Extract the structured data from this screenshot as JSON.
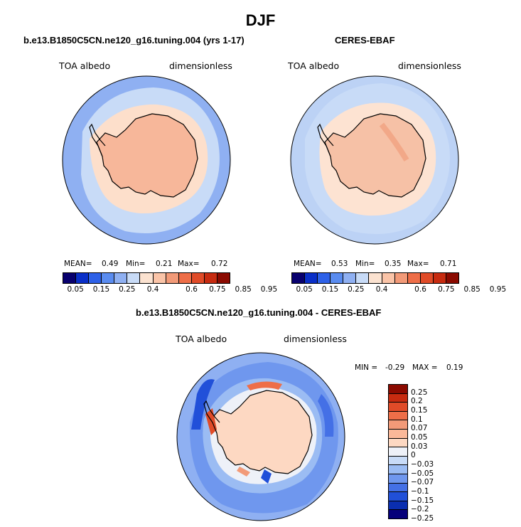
{
  "title": "DJF",
  "chart_data": [
    {
      "type": "heatmap",
      "projection": "south-polar-stereographic",
      "title": "b.e13.B1850C5CN.ne120_g16.tuning.004 (yrs 1-17)",
      "left_label": "TOA albedo",
      "right_label": "dimensionless",
      "stats": {
        "mean_label": "MEAN=",
        "mean": "0.49",
        "min_label": "Min=",
        "min": "0.21",
        "max_label": "Max=",
        "max": "0.72"
      },
      "colorbar_ticks": [
        "0.05",
        "0.15",
        "0.25",
        "0.4",
        "0.6",
        "0.75",
        "0.85",
        "0.95"
      ]
    },
    {
      "type": "heatmap",
      "projection": "south-polar-stereographic",
      "title": "CERES-EBAF",
      "left_label": "TOA albedo",
      "right_label": "dimensionless",
      "stats": {
        "mean_label": "MEAN=",
        "mean": "0.53",
        "min_label": "Min=",
        "min": "0.35",
        "max_label": "Max=",
        "max": "0.71"
      },
      "colorbar_ticks": [
        "0.05",
        "0.15",
        "0.25",
        "0.4",
        "0.6",
        "0.75",
        "0.85",
        "0.95"
      ]
    },
    {
      "type": "heatmap",
      "projection": "south-polar-stereographic",
      "title": "b.e13.B1850C5CN.ne120_g16.tuning.004 - CERES-EBAF",
      "left_label": "TOA albedo",
      "right_label": "dimensionless",
      "stats": {
        "min_label": "MIN =",
        "min": "-0.29",
        "max_label": "MAX =",
        "max": "0.19"
      },
      "colorbar_ticks": [
        "0.25",
        "0.2",
        "0.15",
        "0.1",
        "0.07",
        "0.05",
        "0.03",
        "0",
        "-0.03",
        "-0.05",
        "-0.07",
        "-0.1",
        "-0.15",
        "-0.2",
        "-0.25"
      ]
    }
  ],
  "colors": {
    "seq": [
      "#08006e",
      "#0a2fc8",
      "#2e61e8",
      "#5a8cf0",
      "#8fb0f2",
      "#c8dbf7",
      "#fbe2d0",
      "#fac4a8",
      "#f29a78",
      "#ee6e48",
      "#e04b28",
      "#c72b10",
      "#8b0a00"
    ],
    "div": [
      "#8b0a00",
      "#c72b10",
      "#e04b28",
      "#ee6e48",
      "#f29a78",
      "#fab899",
      "#fdd8c2",
      "#eef1f8",
      "#c8dbf7",
      "#9bbcf3",
      "#6f97ee",
      "#4470e6",
      "#2150d9",
      "#0a2eb0",
      "#06007a"
    ],
    "land_model": "#f7b79a",
    "ice_model": "#fddfcb",
    "ocean_mid": "#c8dbf7",
    "ocean_far": "#8fb0f2",
    "land_obs": "#f6c1a6",
    "ice_obs": "#fde3d2",
    "ocean_obs": "#c8dbf7",
    "diff_bg": "#8fb0f2"
  }
}
